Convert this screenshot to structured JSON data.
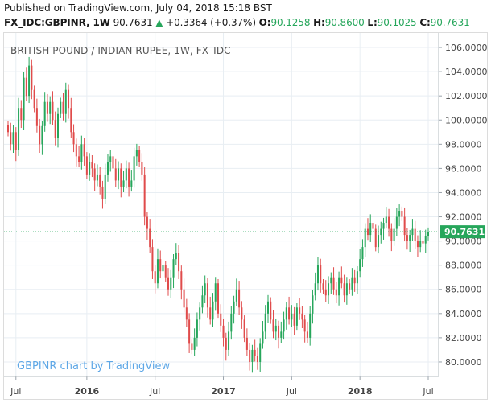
{
  "header": {
    "published": "Published on TradingView.com, July 04, 2018 15:18 BST",
    "symbol": "FX_IDC:GBPINR, 1W",
    "last": "90.7631",
    "arrow": "▲",
    "change": "+0.3364 (+0.37%)",
    "open_label": "O:",
    "open": "90.1258",
    "high_label": "H:",
    "high": "90.8600",
    "low_label": "L:",
    "low": "90.1025",
    "close_label": "C:",
    "close": "90.7631"
  },
  "watermark": "GBPINR chart by TradingView",
  "colors": {
    "up": "#26a65b",
    "down": "#e04b4b",
    "grid": "#e8eef3",
    "last_line": "#26a65b",
    "label_bg": "#26a65b"
  },
  "chart_data": {
    "type": "candlestick",
    "title": "BRITISH POUND / INDIAN RUPEE, 1W, FX_IDC",
    "ylim": [
      78.8,
      107.2
    ],
    "y_ticks": [
      "80.0000",
      "82.0000",
      "84.0000",
      "86.0000",
      "88.0000",
      "90.0000",
      "92.0000",
      "94.0000",
      "96.0000",
      "98.0000",
      "100.0000",
      "102.0000",
      "104.0000",
      "106.0000"
    ],
    "x_ticks": [
      "Jul",
      "2016",
      "Jul",
      "2017",
      "Jul",
      "2018",
      "Jul"
    ],
    "x_tick_index": [
      3,
      30,
      56,
      82,
      108,
      134,
      160
    ],
    "last_price": "90.7631",
    "grid": true,
    "closes": [
      99.0,
      98.0,
      99.0,
      97.5,
      101.0,
      100.0,
      103.5,
      102.0,
      104.5,
      102.5,
      101.0,
      99.5,
      98.0,
      99.5,
      101.5,
      100.5,
      101.5,
      100.0,
      98.5,
      100.5,
      101.5,
      100.5,
      102.5,
      101.0,
      99.0,
      98.0,
      97.0,
      96.5,
      98.0,
      97.0,
      95.5,
      96.5,
      96.0,
      95.0,
      95.5,
      94.5,
      93.5,
      95.5,
      96.5,
      97.0,
      96.0,
      95.0,
      96.0,
      94.5,
      95.0,
      96.0,
      94.5,
      95.0,
      97.0,
      97.5,
      96.5,
      95.5,
      92.0,
      91.0,
      89.5,
      87.5,
      86.5,
      88.5,
      87.5,
      88.0,
      87.0,
      86.0,
      87.0,
      88.5,
      89.0,
      87.5,
      86.0,
      84.5,
      83.5,
      81.5,
      81.0,
      82.0,
      83.5,
      84.5,
      85.5,
      86.5,
      84.5,
      83.5,
      85.0,
      86.5,
      84.0,
      83.0,
      82.0,
      81.0,
      82.5,
      84.0,
      85.0,
      86.0,
      84.5,
      83.5,
      82.0,
      81.0,
      80.0,
      81.0,
      80.5,
      80.0,
      81.5,
      82.5,
      84.0,
      85.0,
      83.5,
      82.5,
      83.0,
      82.0,
      82.5,
      83.5,
      84.5,
      83.5,
      84.0,
      83.0,
      84.5,
      84.0,
      83.5,
      82.5,
      82.0,
      84.0,
      85.5,
      86.5,
      88.0,
      86.5,
      86.0,
      85.5,
      86.5,
      87.0,
      86.0,
      85.5,
      87.0,
      86.5,
      85.5,
      86.5,
      86.0,
      87.0,
      86.5,
      87.5,
      88.5,
      89.5,
      91.0,
      90.5,
      91.5,
      91.0,
      89.5,
      90.5,
      91.0,
      91.5,
      92.0,
      91.0,
      90.0,
      91.0,
      92.0,
      92.5,
      92.0,
      90.5,
      90.0,
      90.5,
      91.0,
      90.0,
      89.5,
      90.0,
      89.8,
      90.4,
      90.7631
    ]
  }
}
